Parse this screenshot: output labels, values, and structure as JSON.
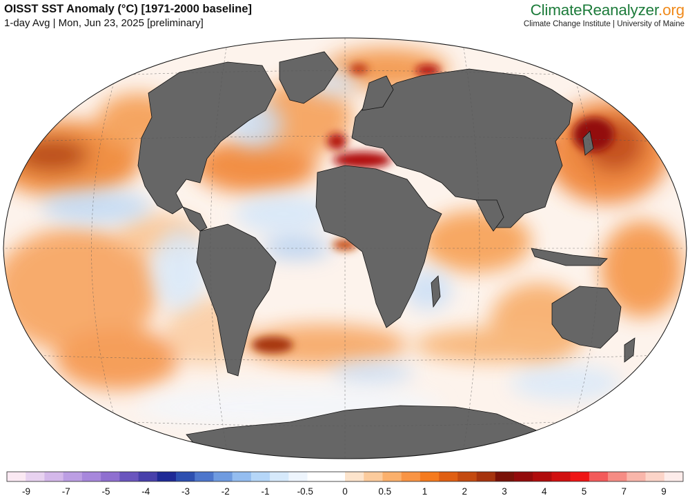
{
  "header": {
    "title": "OISST SST Anomaly (°C) [1971-2000 baseline]",
    "subtitle": "1-day Avg | Mon, Jun 23, 2025 [preliminary]"
  },
  "brand": {
    "name_main": "ClimateReanalyzer",
    "name_tld": ".org",
    "affiliation": "Climate Change Institute | University of Maine"
  },
  "colors": {
    "land": "#666666",
    "ocean_neutral": "#ffffff",
    "warm_accent": "#f08a1b",
    "brand_green": "#1c7b3a"
  },
  "colorbar": {
    "units": "°C",
    "swatches": [
      "#fbe9f3",
      "#e8d2f0",
      "#d4b8ea",
      "#bc9ee3",
      "#a787dc",
      "#8f6fd0",
      "#6a55be",
      "#4840ab",
      "#1f2a96",
      "#2d4fb0",
      "#4d76cc",
      "#6f9be0",
      "#94bdf0",
      "#b5d6f8",
      "#d6e9fb",
      "#eef5fd",
      "#ffffff",
      "#ffffff",
      "#fde4cc",
      "#fccb9c",
      "#fbb06c",
      "#f99444",
      "#f57a1d",
      "#e05f12",
      "#c44a10",
      "#a6340e",
      "#7a1208",
      "#930b0b",
      "#b00c0c",
      "#d10f0f",
      "#ef1414",
      "#f35a5a",
      "#f68c84",
      "#f9b6aa",
      "#fcd4c8",
      "#fdecea"
    ],
    "tick_labels": [
      "-9",
      "-7",
      "-5",
      "-4",
      "-3",
      "-2",
      "-1",
      "-0.5",
      "0",
      "0.5",
      "1",
      "2",
      "3",
      "4",
      "5",
      "7",
      "9"
    ]
  },
  "map": {
    "projection": "Winkel tripel",
    "graticule": "dashed"
  }
}
